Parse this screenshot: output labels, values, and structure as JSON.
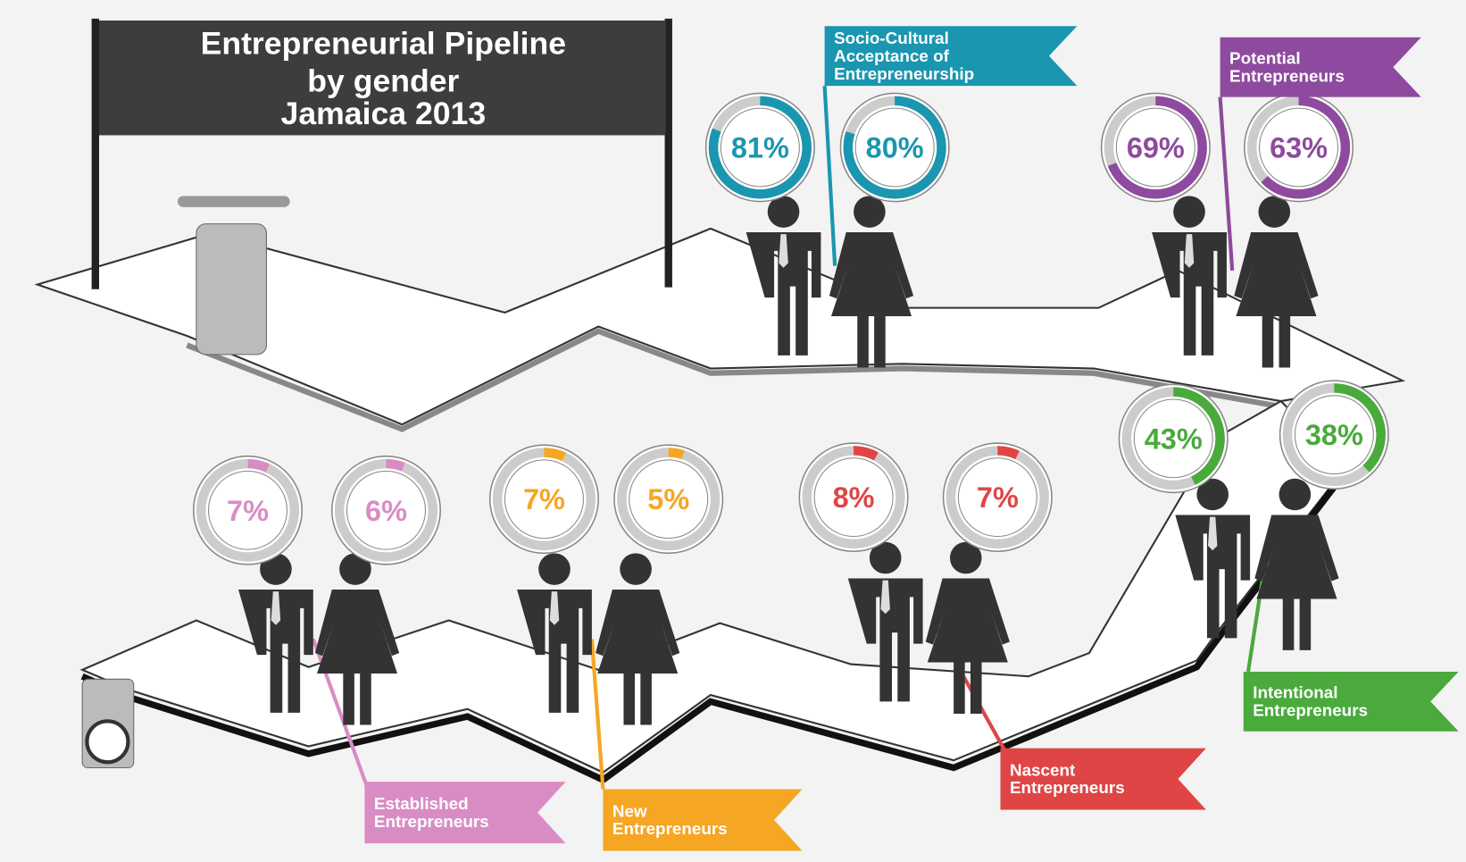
{
  "chart_data": {
    "type": "donut-pipeline",
    "title": [
      "Entrepreneurial Pipeline",
      "by gender",
      "Jamaica 2013"
    ],
    "stages": [
      {
        "label": [
          "Socio-Cultural",
          "Acceptance of",
          "Entrepreneurship"
        ],
        "color": "#1a96b0",
        "values": [
          81,
          80
        ],
        "value_labels": [
          "81%",
          "80%"
        ]
      },
      {
        "label": [
          "Potential",
          "Entrepreneurs"
        ],
        "color": "#8e4a9e",
        "values": [
          69,
          63
        ],
        "value_labels": [
          "69%",
          "63%"
        ]
      },
      {
        "label": [
          "Intentional",
          "Entrepreneurs"
        ],
        "color": "#4aaa3c",
        "values": [
          43,
          38
        ],
        "value_labels": [
          "43%",
          "38%"
        ]
      },
      {
        "label": [
          "Nascent",
          "Entrepreneurs"
        ],
        "color": "#e04545",
        "values": [
          8,
          7
        ],
        "value_labels": [
          "8%",
          "7%"
        ]
      },
      {
        "label": [
          "New",
          "Entrepreneurs"
        ],
        "color": "#f5a623",
        "values": [
          7,
          5
        ],
        "value_labels": [
          "7%",
          "5%"
        ]
      },
      {
        "label": [
          "Established",
          "Entrepreneurs"
        ],
        "color": "#d98cc4",
        "values": [
          7,
          6
        ],
        "value_labels": [
          "7%",
          "6%"
        ]
      }
    ]
  }
}
